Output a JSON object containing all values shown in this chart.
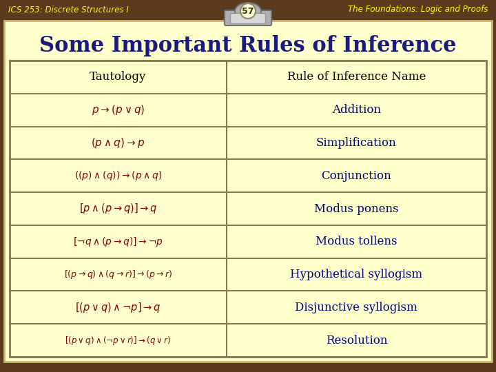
{
  "header_left": "ICS 253: Discrete Structures I",
  "header_right": "The Foundations: Logic and Proofs",
  "slide_number": "57",
  "title": "Some Important Rules of Inference",
  "col1_header": "Tautology",
  "col2_header": "Rule of Inference Name",
  "rows": [
    [
      "$p \\rightarrow(p\\vee q)$",
      "Addition"
    ],
    [
      "$(p\\wedge q)\\rightarrow p$",
      "Simplification"
    ],
    [
      "$((p)\\wedge(q))\\rightarrow(p\\wedge q)$",
      "Conjunction"
    ],
    [
      "$[p\\wedge(p\\rightarrow q)]\\rightarrow q$",
      "Modus ponens"
    ],
    [
      "$[{\\neg}q\\wedge(p\\rightarrow q)]\\rightarrow{\\neg}p$",
      "Modus tollens"
    ],
    [
      "$[(p\\rightarrow q)\\wedge(q\\rightarrow r)]\\rightarrow(p\\rightarrow r)$",
      "Hypothetical syllogism"
    ],
    [
      "$[(p\\vee q)\\wedge{\\neg}p]\\rightarrow q$",
      "Disjunctive syllogism"
    ],
    [
      "$[(p\\vee q)\\wedge({\\neg}p\\vee r)]\\rightarrow(q\\vee r)$",
      "Resolution"
    ]
  ],
  "bg_wood": "#5c3a1e",
  "bg_yellow": "#ffffcc",
  "title_color": "#1a1a80",
  "header_text_color": "#ffff00",
  "table_border_color": "#8B7355",
  "col1_text_color": "#8B0000",
  "col2_text_color": "#000080",
  "header_row_text_color": "#000000",
  "fig_width": 7.2,
  "fig_height": 5.4,
  "dpi": 100
}
